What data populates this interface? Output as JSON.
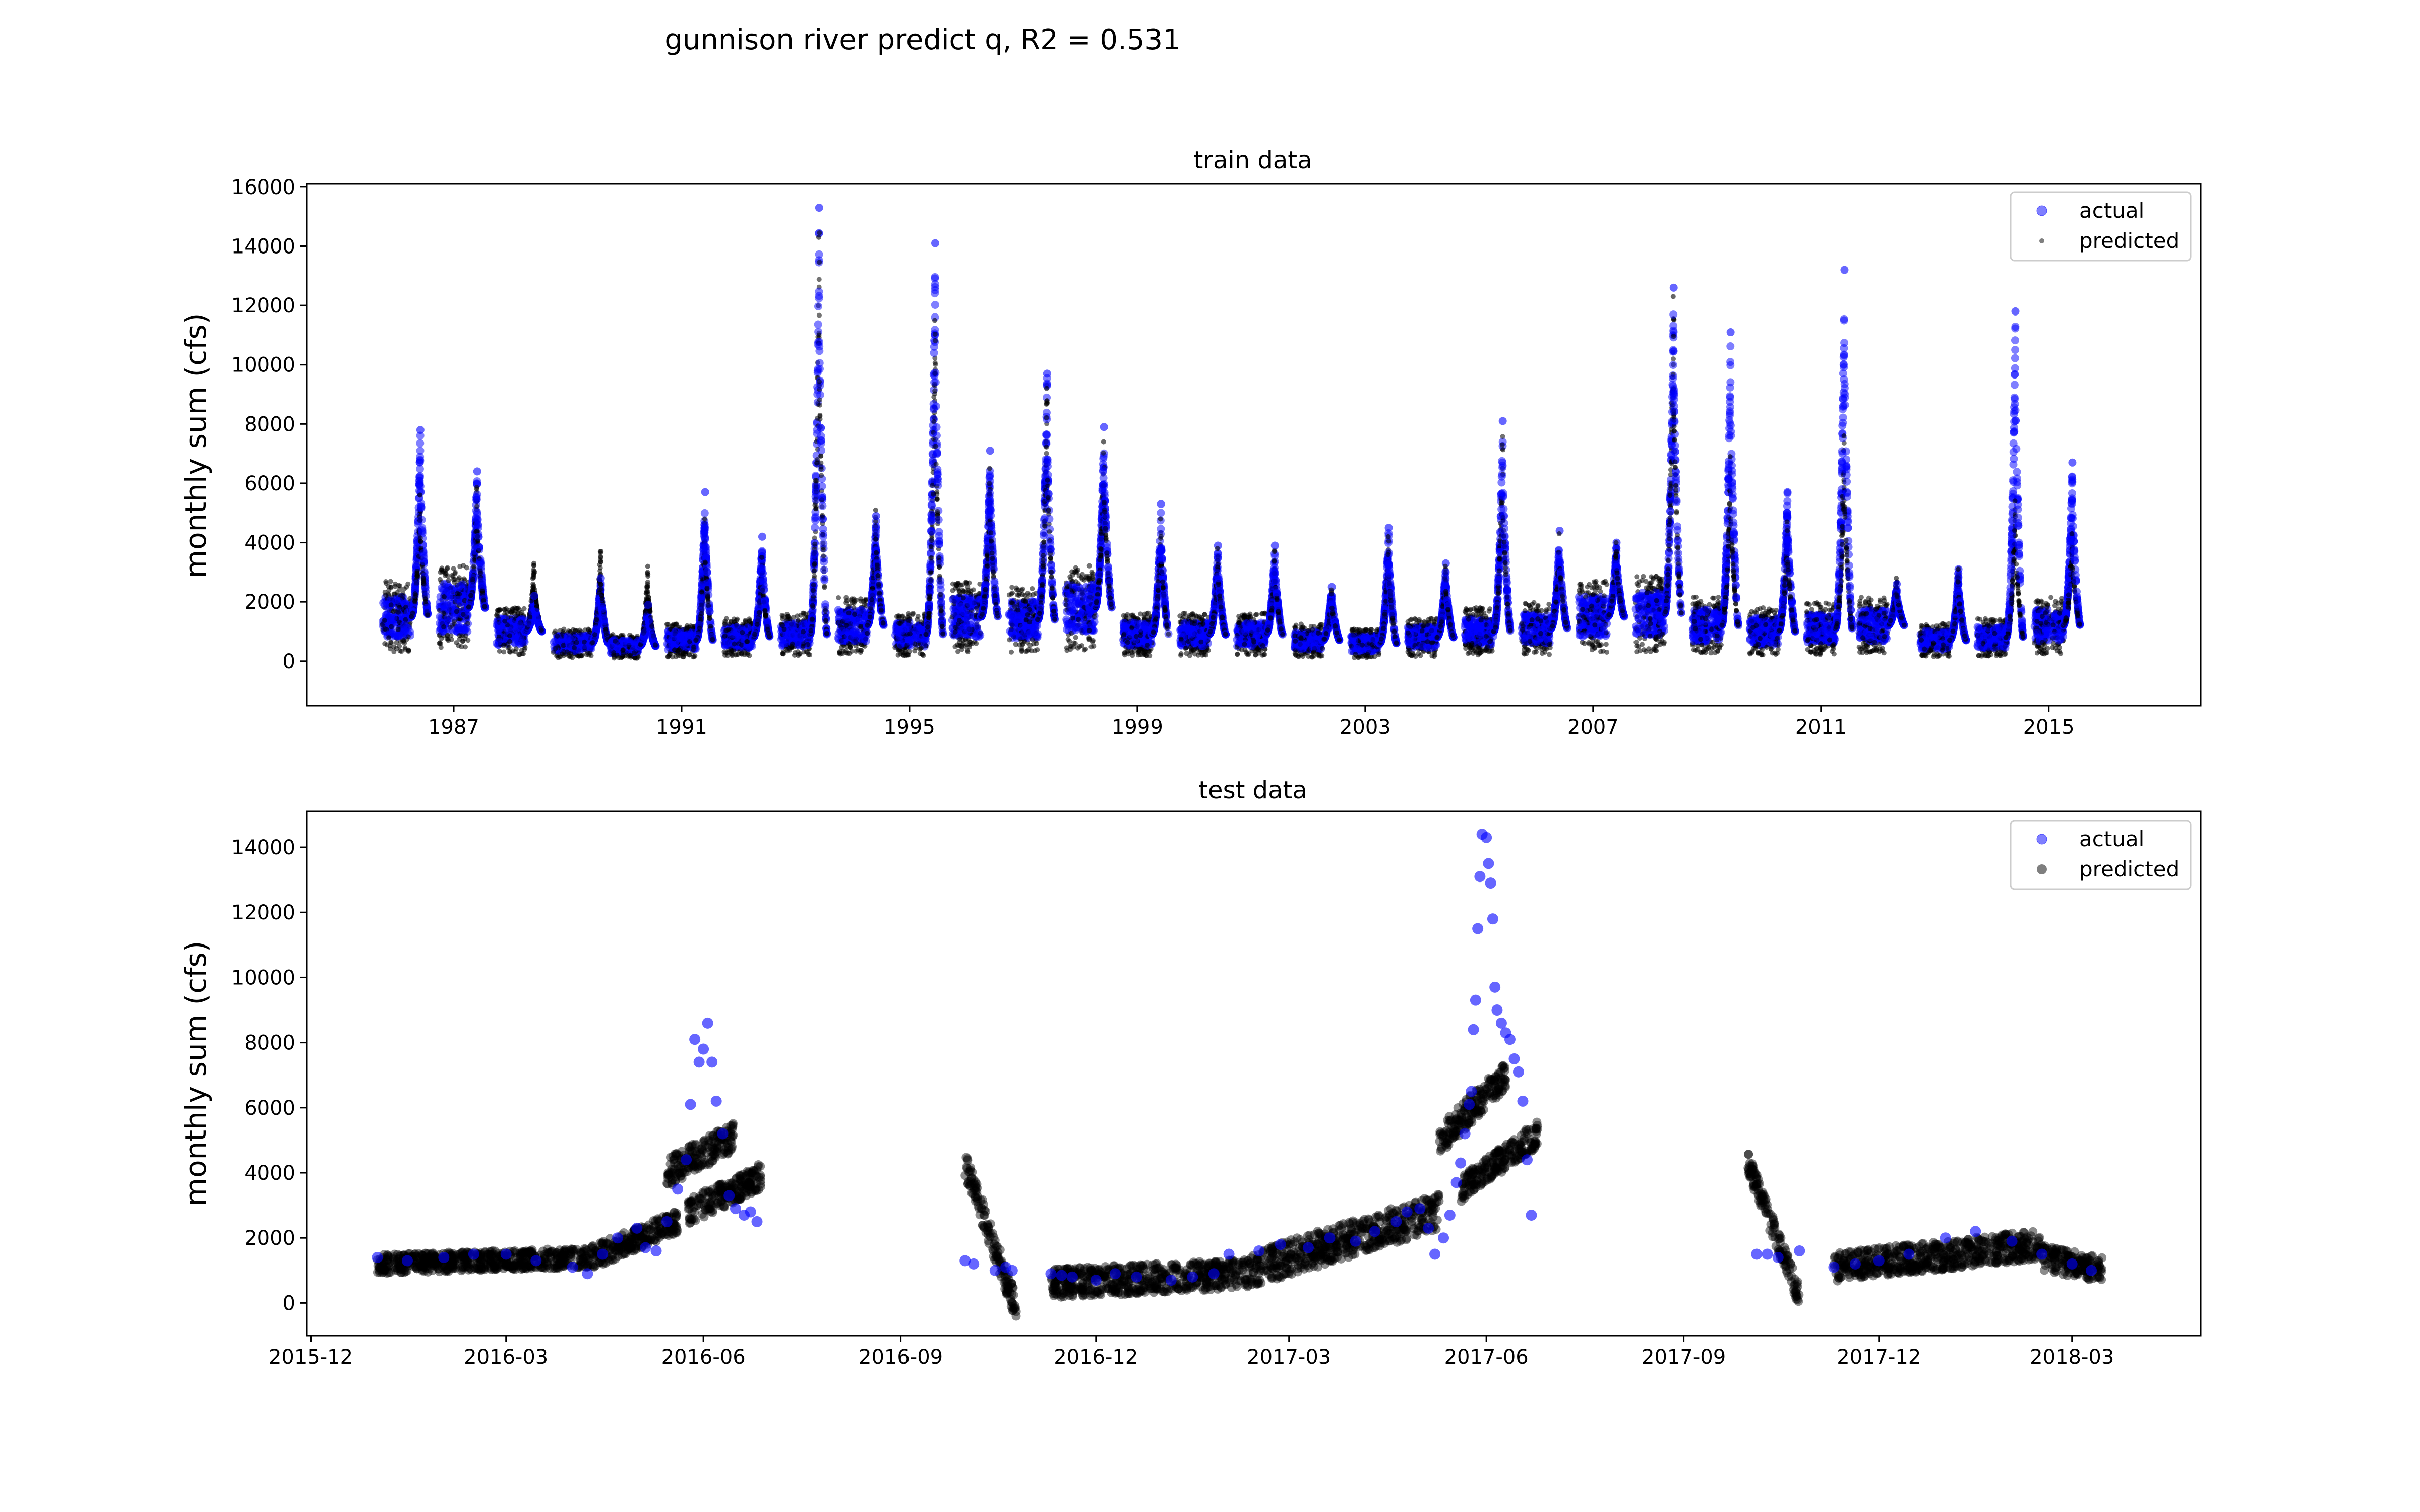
{
  "figure": {
    "title": "gunnison river predict q, R2 = 0.531"
  },
  "chart_data": [
    {
      "type": "scatter",
      "title": "train data",
      "ylabel": "monthly sum (cfs)",
      "xlabel": "",
      "xlim": [
        "1984-06-01",
        "2017-09-01"
      ],
      "ylim": [
        -1500,
        16100
      ],
      "yticks": [
        0,
        2000,
        4000,
        6000,
        8000,
        10000,
        12000,
        14000,
        16000
      ],
      "xticks": [
        "1987",
        "1991",
        "1995",
        "1999",
        "2003",
        "2007",
        "2011",
        "2015"
      ],
      "legend": {
        "position": "top-right",
        "entries": [
          "actual",
          "predicted"
        ]
      },
      "grid": false,
      "series": [
        {
          "name": "actual",
          "color": "#0000ff",
          "marker": "circle",
          "alpha": 0.5
        },
        {
          "name": "predicted",
          "color": "#000000",
          "marker": "small-circle",
          "alpha": 0.5
        }
      ],
      "annual_peaks": [
        {
          "year": 1985,
          "peak_date": "1986-06-01",
          "actual_peak": 7800,
          "predicted_peak": 5600,
          "base": 1500
        },
        {
          "year": 1987,
          "peak_date": "1987-06-01",
          "actual_peak": 6400,
          "predicted_peak": 5800,
          "base": 1800
        },
        {
          "year": 1988,
          "peak_date": "1988-06-01",
          "actual_peak": 2200,
          "predicted_peak": 3300,
          "base": 1000
        },
        {
          "year": 1989,
          "peak_date": "1989-08-01",
          "actual_peak": 2800,
          "predicted_peak": 3700,
          "base": 600
        },
        {
          "year": 1990,
          "peak_date": "1990-06-01",
          "actual_peak": 1900,
          "predicted_peak": 3200,
          "base": 500
        },
        {
          "year": 1991,
          "peak_date": "1991-06-01",
          "actual_peak": 5700,
          "predicted_peak": 4800,
          "base": 700
        },
        {
          "year": 1992,
          "peak_date": "1992-06-01",
          "actual_peak": 4200,
          "predicted_peak": 3500,
          "base": 800
        },
        {
          "year": 1993,
          "peak_date": "1993-06-01",
          "actual_peak": 15300,
          "predicted_peak": 14300,
          "base": 900
        },
        {
          "year": 1994,
          "peak_date": "1994-06-01",
          "actual_peak": 4900,
          "predicted_peak": 5100,
          "base": 1200
        },
        {
          "year": 1995,
          "peak_date": "1995-06-15",
          "actual_peak": 14100,
          "predicted_peak": 11500,
          "base": 900
        },
        {
          "year": 1996,
          "peak_date": "1996-06-01",
          "actual_peak": 7100,
          "predicted_peak": 6500,
          "base": 1500
        },
        {
          "year": 1997,
          "peak_date": "1997-06-01",
          "actual_peak": 9700,
          "predicted_peak": 9200,
          "base": 1400
        },
        {
          "year": 1998,
          "peak_date": "1998-06-01",
          "actual_peak": 7900,
          "predicted_peak": 7400,
          "base": 1800
        },
        {
          "year": 1999,
          "peak_date": "1999-06-01",
          "actual_peak": 5300,
          "predicted_peak": 4800,
          "base": 900
        },
        {
          "year": 2000,
          "peak_date": "2000-06-01",
          "actual_peak": 3900,
          "predicted_peak": 3800,
          "base": 900
        },
        {
          "year": 2001,
          "peak_date": "2001-06-01",
          "actual_peak": 3900,
          "predicted_peak": 3700,
          "base": 900
        },
        {
          "year": 2002,
          "peak_date": "2002-06-01",
          "actual_peak": 2500,
          "predicted_peak": 2400,
          "base": 700
        },
        {
          "year": 2003,
          "peak_date": "2003-06-01",
          "actual_peak": 4500,
          "predicted_peak": 4200,
          "base": 600
        },
        {
          "year": 2004,
          "peak_date": "2004-06-01",
          "actual_peak": 3300,
          "predicted_peak": 3200,
          "base": 800
        },
        {
          "year": 2005,
          "peak_date": "2005-06-01",
          "actual_peak": 8100,
          "predicted_peak": 7300,
          "base": 1000
        },
        {
          "year": 2006,
          "peak_date": "2006-06-01",
          "actual_peak": 4400,
          "predicted_peak": 4300,
          "base": 1100
        },
        {
          "year": 2007,
          "peak_date": "2007-06-01",
          "actual_peak": 4000,
          "predicted_peak": 4000,
          "base": 1500
        },
        {
          "year": 2008,
          "peak_date": "2008-06-01",
          "actual_peak": 12600,
          "predicted_peak": 12300,
          "base": 1600
        },
        {
          "year": 2009,
          "peak_date": "2009-06-01",
          "actual_peak": 11100,
          "predicted_peak": 6900,
          "base": 1200
        },
        {
          "year": 2010,
          "peak_date": "2010-06-01",
          "actual_peak": 5700,
          "predicted_peak": 4700,
          "base": 1000
        },
        {
          "year": 2011,
          "peak_date": "2011-06-01",
          "actual_peak": 13200,
          "predicted_peak": 7600,
          "base": 1100
        },
        {
          "year": 2012,
          "peak_date": "2012-05-01",
          "actual_peak": 2600,
          "predicted_peak": 2800,
          "base": 1200
        },
        {
          "year": 2013,
          "peak_date": "2013-06-01",
          "actual_peak": 3100,
          "predicted_peak": 3100,
          "base": 700
        },
        {
          "year": 2014,
          "peak_date": "2014-06-01",
          "actual_peak": 11800,
          "predicted_peak": 5400,
          "base": 800
        },
        {
          "year": 2015,
          "peak_date": "2015-06-01",
          "actual_peak": 6700,
          "predicted_peak": 4300,
          "base": 1200
        }
      ]
    },
    {
      "type": "scatter",
      "title": "test data",
      "ylabel": "monthly sum (cfs)",
      "xlabel": "",
      "xlim": [
        "2015-11-29",
        "2018-04-30"
      ],
      "ylim": [
        -1000,
        15100
      ],
      "yticks": [
        0,
        2000,
        4000,
        6000,
        8000,
        10000,
        12000,
        14000
      ],
      "xticks": [
        "2015-12",
        "2016-03",
        "2016-06",
        "2016-09",
        "2016-12",
        "2017-03",
        "2017-06",
        "2017-09",
        "2017-12",
        "2018-03"
      ],
      "legend": {
        "position": "top-right",
        "entries": [
          "actual",
          "predicted"
        ]
      },
      "grid": false,
      "series": [
        {
          "name": "actual",
          "color": "#0000ff",
          "marker": "circle",
          "alpha": 0.5,
          "points": [
            [
              "2016-01-01",
              1400
            ],
            [
              "2016-01-15",
              1300
            ],
            [
              "2016-02-01",
              1400
            ],
            [
              "2016-02-15",
              1500
            ],
            [
              "2016-03-01",
              1500
            ],
            [
              "2016-03-15",
              1300
            ],
            [
              "2016-04-01",
              1100
            ],
            [
              "2016-04-08",
              900
            ],
            [
              "2016-04-15",
              1500
            ],
            [
              "2016-04-22",
              2000
            ],
            [
              "2016-05-01",
              2300
            ],
            [
              "2016-05-05",
              1700
            ],
            [
              "2016-05-10",
              1600
            ],
            [
              "2016-05-15",
              2500
            ],
            [
              "2016-05-20",
              3500
            ],
            [
              "2016-05-24",
              4400
            ],
            [
              "2016-05-26",
              6100
            ],
            [
              "2016-05-28",
              8100
            ],
            [
              "2016-05-30",
              7400
            ],
            [
              "2016-06-01",
              7800
            ],
            [
              "2016-06-03",
              8600
            ],
            [
              "2016-06-05",
              7400
            ],
            [
              "2016-06-07",
              6200
            ],
            [
              "2016-06-10",
              5200
            ],
            [
              "2016-06-13",
              3300
            ],
            [
              "2016-06-16",
              2900
            ],
            [
              "2016-06-20",
              2700
            ],
            [
              "2016-06-23",
              2800
            ],
            [
              "2016-06-26",
              2500
            ],
            [
              "2016-10-01",
              1300
            ],
            [
              "2016-10-05",
              1200
            ],
            [
              "2016-10-15",
              1000
            ],
            [
              "2016-10-20",
              1100
            ],
            [
              "2016-10-23",
              1000
            ],
            [
              "2016-11-10",
              900
            ],
            [
              "2016-11-15",
              850
            ],
            [
              "2016-11-20",
              800
            ],
            [
              "2016-12-01",
              700
            ],
            [
              "2016-12-10",
              900
            ],
            [
              "2016-12-20",
              800
            ],
            [
              "2017-01-05",
              700
            ],
            [
              "2017-01-15",
              800
            ],
            [
              "2017-01-25",
              900
            ],
            [
              "2017-02-01",
              1500
            ],
            [
              "2017-02-15",
              1600
            ],
            [
              "2017-02-25",
              1800
            ],
            [
              "2017-03-10",
              1700
            ],
            [
              "2017-03-20",
              2000
            ],
            [
              "2017-04-01",
              1900
            ],
            [
              "2017-04-10",
              2200
            ],
            [
              "2017-04-20",
              2500
            ],
            [
              "2017-04-25",
              2800
            ],
            [
              "2017-05-01",
              2900
            ],
            [
              "2017-05-05",
              2300
            ],
            [
              "2017-05-08",
              1500
            ],
            [
              "2017-05-12",
              2000
            ],
            [
              "2017-05-15",
              2700
            ],
            [
              "2017-05-18",
              3700
            ],
            [
              "2017-05-20",
              4300
            ],
            [
              "2017-05-22",
              5200
            ],
            [
              "2017-05-24",
              6100
            ],
            [
              "2017-05-25",
              6500
            ],
            [
              "2017-05-26",
              8400
            ],
            [
              "2017-05-27",
              9300
            ],
            [
              "2017-05-28",
              11500
            ],
            [
              "2017-05-29",
              13100
            ],
            [
              "2017-05-30",
              14400
            ],
            [
              "2017-06-01",
              14300
            ],
            [
              "2017-06-02",
              13500
            ],
            [
              "2017-06-03",
              12900
            ],
            [
              "2017-06-04",
              11800
            ],
            [
              "2017-06-05",
              9700
            ],
            [
              "2017-06-06",
              9000
            ],
            [
              "2017-06-08",
              8600
            ],
            [
              "2017-06-10",
              8300
            ],
            [
              "2017-06-12",
              8100
            ],
            [
              "2017-06-14",
              7500
            ],
            [
              "2017-06-16",
              7100
            ],
            [
              "2017-06-18",
              6200
            ],
            [
              "2017-06-20",
              4400
            ],
            [
              "2017-06-22",
              2700
            ],
            [
              "2017-10-05",
              1500
            ],
            [
              "2017-10-10",
              1500
            ],
            [
              "2017-10-15",
              1400
            ],
            [
              "2017-10-25",
              1600
            ],
            [
              "2017-11-10",
              1100
            ],
            [
              "2017-11-20",
              1200
            ],
            [
              "2017-12-01",
              1300
            ],
            [
              "2017-12-15",
              1500
            ],
            [
              "2018-01-01",
              2000
            ],
            [
              "2018-01-15",
              2200
            ],
            [
              "2018-02-01",
              1900
            ],
            [
              "2018-02-15",
              1500
            ],
            [
              "2018-03-01",
              1200
            ],
            [
              "2018-03-10",
              1000
            ]
          ]
        },
        {
          "name": "predicted",
          "color": "#000000",
          "marker": "circle",
          "alpha": 0.5,
          "segments": [
            {
              "start": "2016-01-01",
              "end": "2016-04-10",
              "from": 1200,
              "to": 1400,
              "spread": 600
            },
            {
              "start": "2016-04-10",
              "end": "2016-05-20",
              "from": 1400,
              "to": 2500,
              "spread": 700
            },
            {
              "start": "2016-05-15",
              "end": "2016-06-15",
              "from": 4000,
              "to": 5100,
              "spread": 900
            },
            {
              "start": "2016-05-25",
              "end": "2016-06-28",
              "from": 2800,
              "to": 3900,
              "spread": 800
            },
            {
              "start": "2016-10-01",
              "end": "2016-10-25",
              "from": 4300,
              "to": -200,
              "spread": 800
            },
            {
              "start": "2016-11-10",
              "end": "2017-02-10",
              "from": 600,
              "to": 900,
              "spread": 900
            },
            {
              "start": "2017-02-10",
              "end": "2017-05-10",
              "from": 1000,
              "to": 2800,
              "spread": 1100
            },
            {
              "start": "2017-05-10",
              "end": "2017-06-10",
              "from": 5000,
              "to": 7000,
              "spread": 900
            },
            {
              "start": "2017-05-20",
              "end": "2017-06-25",
              "from": 3500,
              "to": 5200,
              "spread": 800
            },
            {
              "start": "2017-10-01",
              "end": "2017-10-25",
              "from": 4300,
              "to": 200,
              "spread": 700
            },
            {
              "start": "2017-11-10",
              "end": "2018-02-15",
              "from": 1100,
              "to": 1800,
              "spread": 900
            },
            {
              "start": "2018-02-15",
              "end": "2018-03-15",
              "from": 1400,
              "to": 1000,
              "spread": 800
            }
          ]
        }
      ]
    }
  ]
}
